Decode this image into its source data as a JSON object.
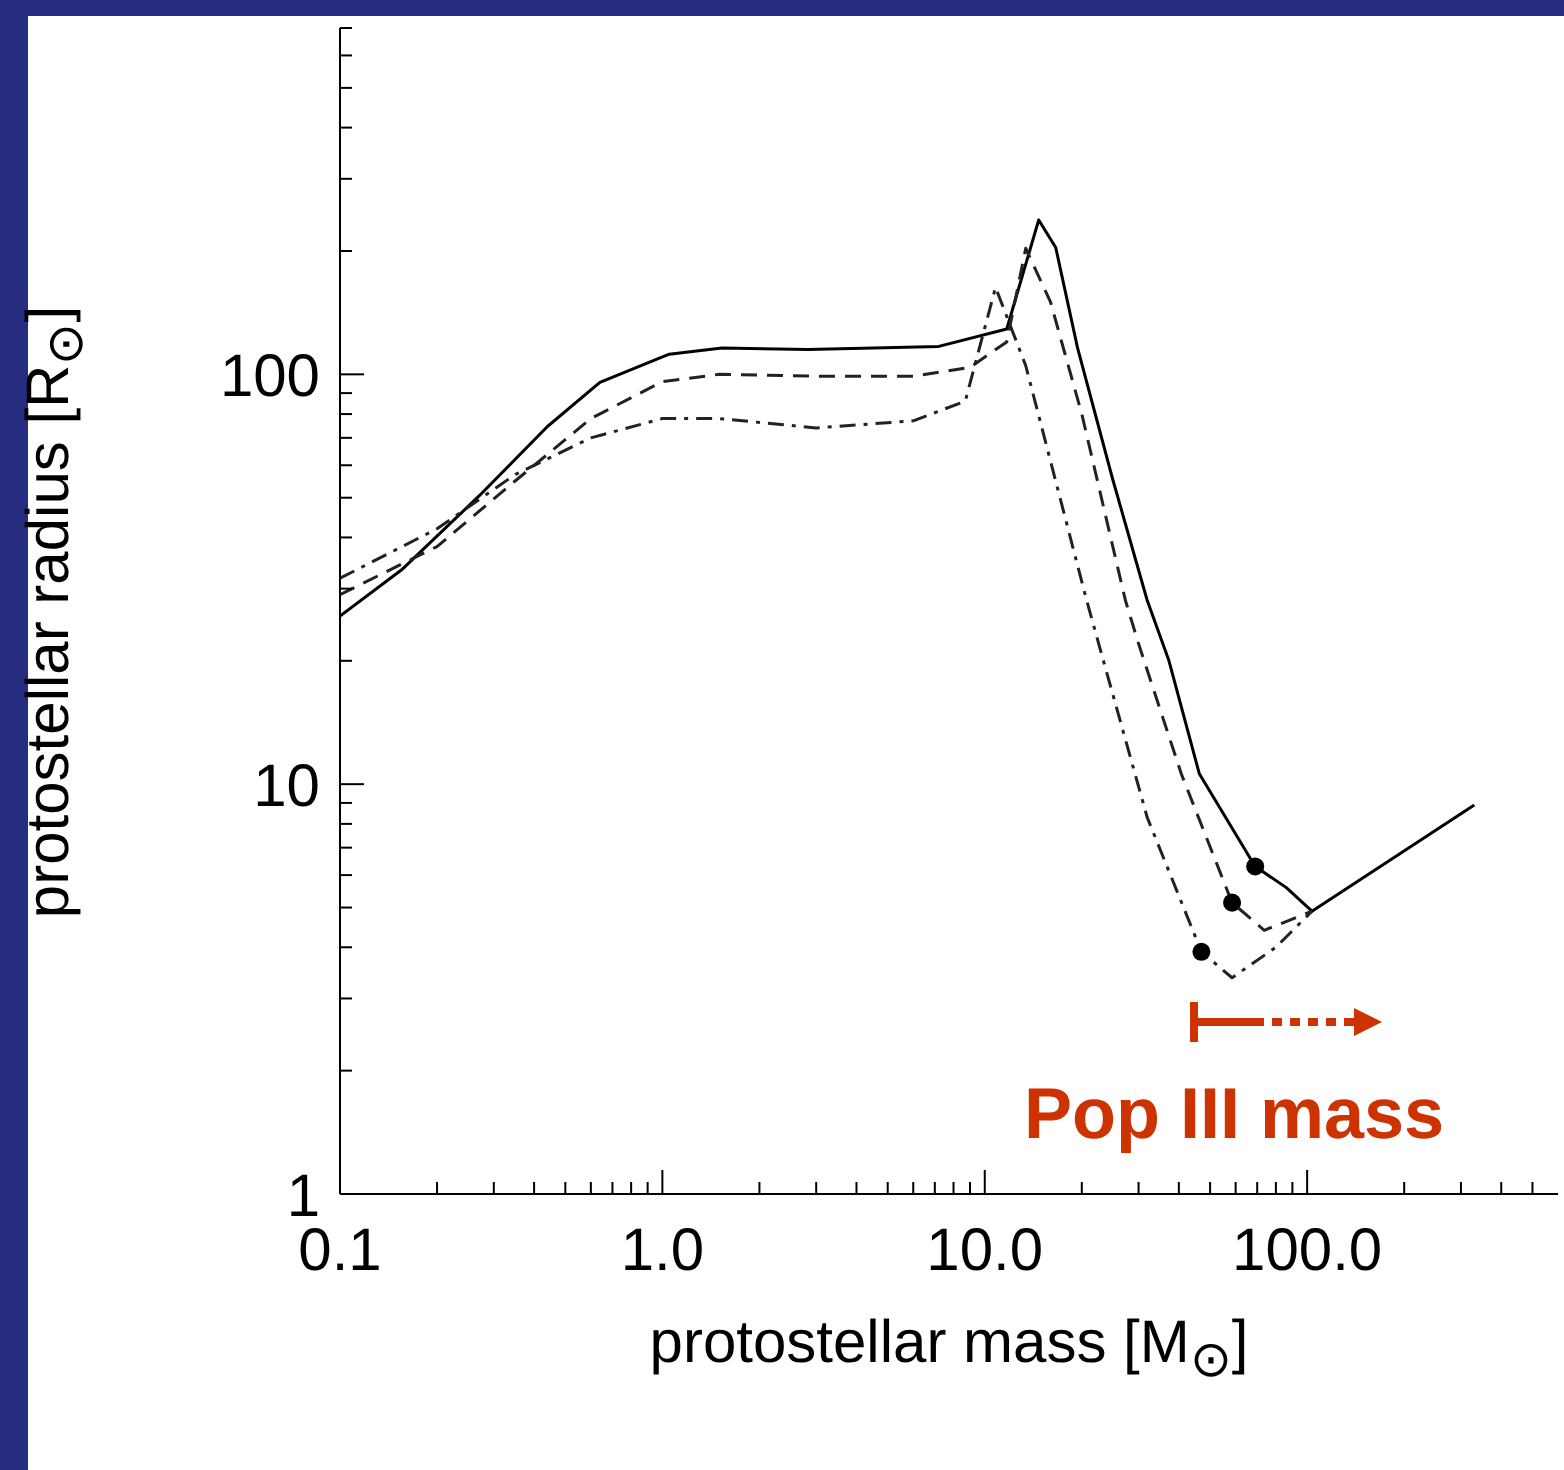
{
  "chart_data": {
    "type": "line",
    "xlabel": "protostellar mass [M$_{⊙}$]",
    "ylabel": "protostellar radius [R$_{⊙}$]",
    "log": "xy",
    "xlim": [
      0.1,
      600
    ],
    "ylim": [
      1,
      700
    ],
    "xticks": [
      {
        "value": 0.1,
        "label": "0.1"
      },
      {
        "value": 0.2,
        "label": null
      },
      {
        "value": 0.3,
        "label": null
      },
      {
        "value": 0.4,
        "label": null
      },
      {
        "value": 0.5,
        "label": null
      },
      {
        "value": 0.6,
        "label": null
      },
      {
        "value": 0.7,
        "label": null
      },
      {
        "value": 0.8,
        "label": null
      },
      {
        "value": 0.9,
        "label": null
      },
      {
        "value": 1,
        "label": "1.0"
      },
      {
        "value": 2,
        "label": null
      },
      {
        "value": 3,
        "label": null
      },
      {
        "value": 4,
        "label": null
      },
      {
        "value": 5,
        "label": null
      },
      {
        "value": 6,
        "label": null
      },
      {
        "value": 7,
        "label": null
      },
      {
        "value": 8,
        "label": null
      },
      {
        "value": 9,
        "label": null
      },
      {
        "value": 10,
        "label": "10.0"
      },
      {
        "value": 20,
        "label": null
      },
      {
        "value": 30,
        "label": null
      },
      {
        "value": 40,
        "label": null
      },
      {
        "value": 50,
        "label": null
      },
      {
        "value": 60,
        "label": null
      },
      {
        "value": 70,
        "label": null
      },
      {
        "value": 80,
        "label": null
      },
      {
        "value": 90,
        "label": null
      },
      {
        "value": 100,
        "label": "100.0"
      },
      {
        "value": 200,
        "label": null
      },
      {
        "value": 300,
        "label": null
      },
      {
        "value": 400,
        "label": null
      },
      {
        "value": 500,
        "label": null
      }
    ],
    "yticks": [
      1,
      {
        "value": 2,
        "label": null
      },
      {
        "value": 3,
        "label": null
      },
      {
        "value": 4,
        "label": null
      },
      {
        "value": 5,
        "label": null
      },
      {
        "value": 6,
        "label": null
      },
      {
        "value": 7,
        "label": null
      },
      {
        "value": 8,
        "label": null
      },
      {
        "value": 9,
        "label": null
      },
      10,
      {
        "value": 20,
        "label": null
      },
      {
        "value": 30,
        "label": null
      },
      {
        "value": 40,
        "label": null
      },
      {
        "value": 50,
        "label": null
      },
      {
        "value": 60,
        "label": null
      },
      {
        "value": 70,
        "label": null
      },
      {
        "value": 80,
        "label": null
      },
      {
        "value": 90,
        "label": null
      },
      100,
      {
        "value": 200,
        "label": null
      },
      {
        "value": 300,
        "label": null
      },
      {
        "value": 400,
        "label": null
      },
      {
        "value": 500,
        "label": null
      },
      {
        "value": 600,
        "label": null
      },
      {
        "value": 700,
        "label": null
      }
    ],
    "marker": "none",
    "series": [
      {
        "color": "#000000",
        "line_style": "solid",
        "x": [
          0.1,
          0.155,
          0.27,
          0.44,
          0.64,
          1.05,
          1.53,
          2.83,
          7.2,
          11.7,
          14.7,
          16.6,
          19.4,
          24.9,
          31.9,
          37.2,
          46.3,
          69,
          86,
          103.5,
          330
        ],
        "values": [
          25.7,
          33.3,
          50.5,
          74.6,
          95.6,
          112,
          116,
          115,
          117,
          129,
          238,
          204,
          116,
          55.7,
          28.1,
          20.1,
          10.6,
          6.3,
          5.6,
          4.9,
          8.9
        ]
      },
      {
        "color": "#222222",
        "line_style": "dashed",
        "x": [
          0.1,
          0.2,
          0.35,
          0.6,
          1.0,
          1.5,
          3,
          6,
          9,
          11.7,
          13.4,
          16,
          20,
          27.3,
          30,
          40.7,
          58.5,
          73.6,
          103.5
        ],
        "values": [
          29,
          38,
          55,
          78,
          96,
          100,
          99,
          99,
          104,
          120,
          203,
          150,
          80,
          28.1,
          22,
          10.6,
          5.14,
          4.4,
          4.9
        ]
      },
      {
        "color": "#222222",
        "line_style": "dashdot",
        "x": [
          0.1,
          0.2,
          0.35,
          0.6,
          1.0,
          1.5,
          3,
          6,
          8.7,
          10.8,
          13.4,
          20.7,
          23.3,
          31.9,
          47,
          58.5,
          80,
          103.5
        ],
        "values": [
          31.8,
          42,
          57,
          70,
          78,
          78,
          74,
          77,
          86,
          163,
          105,
          28.1,
          20.1,
          8.3,
          3.9,
          3.37,
          4.0,
          4.9
        ]
      },
      {
        "type": "scatter",
        "color": "#000000",
        "marker": "circle",
        "x": [
          69,
          58.5,
          47
        ],
        "values": [
          6.3,
          5.14,
          3.9
        ]
      }
    ],
    "annotations": [
      "Pop III mass"
    ]
  }
}
